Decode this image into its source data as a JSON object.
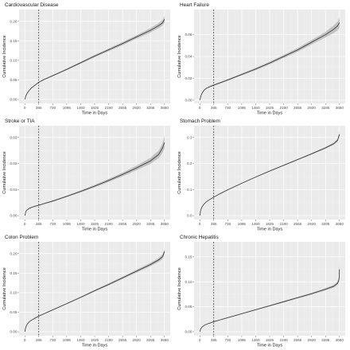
{
  "chart_data": [
    {
      "type": "line",
      "title": "Cardiovascular Disease",
      "xlabel": "Time in Days",
      "ylabel": "Cumulative Incidence",
      "x_ticks": [
        0,
        365,
        730,
        1095,
        1460,
        1825,
        2190,
        2555,
        2920,
        3285,
        3650
      ],
      "y_ticks": [
        0.0,
        0.05,
        0.1,
        0.15,
        0.2
      ],
      "y_tick_labels": [
        "0.00",
        "0.05",
        "0.10",
        "0.15",
        "0.20"
      ],
      "xlim": [
        -150,
        3800
      ],
      "ylim": [
        -0.01,
        0.23
      ],
      "vline_x": 365,
      "grid": true,
      "series": [
        {
          "x": [
            0,
            30,
            60,
            120,
            180,
            270,
            365,
            500,
            730,
            1095,
            1460,
            1825,
            2190,
            2555,
            2920,
            3285,
            3500,
            3600,
            3650
          ],
          "y": [
            0.0,
            0.01,
            0.016,
            0.024,
            0.03,
            0.037,
            0.044,
            0.051,
            0.061,
            0.077,
            0.094,
            0.111,
            0.127,
            0.143,
            0.16,
            0.177,
            0.189,
            0.196,
            0.205
          ],
          "lower": [
            0.0,
            0.0095,
            0.0153,
            0.0231,
            0.0291,
            0.036,
            0.0429,
            0.0497,
            0.0595,
            0.075,
            0.0915,
            0.108,
            0.1235,
            0.139,
            0.1555,
            0.1715,
            0.1825,
            0.189,
            0.196
          ],
          "upper": [
            0.0,
            0.0105,
            0.0167,
            0.0249,
            0.0309,
            0.038,
            0.0451,
            0.0523,
            0.0625,
            0.079,
            0.0965,
            0.114,
            0.1305,
            0.147,
            0.1645,
            0.1825,
            0.1955,
            0.203,
            0.214
          ]
        }
      ]
    },
    {
      "type": "line",
      "title": "Heart Failure",
      "xlabel": "Time in Days",
      "ylabel": "Cumulative Incidence",
      "x_ticks": [
        0,
        365,
        730,
        1095,
        1460,
        1825,
        2190,
        2555,
        2920,
        3285,
        3650
      ],
      "y_ticks": [
        0.0,
        0.02,
        0.04,
        0.06
      ],
      "y_tick_labels": [
        "0.00",
        "0.02",
        "0.04",
        "0.06"
      ],
      "xlim": [
        -150,
        3800
      ],
      "ylim": [
        -0.003,
        0.083
      ],
      "vline_x": 365,
      "grid": true,
      "series": [
        {
          "x": [
            0,
            30,
            60,
            120,
            180,
            270,
            365,
            500,
            730,
            1095,
            1460,
            1825,
            2190,
            2555,
            2920,
            3285,
            3500,
            3600,
            3650
          ],
          "y": [
            0.0,
            0.004,
            0.0065,
            0.0095,
            0.011,
            0.0125,
            0.0138,
            0.0155,
            0.0185,
            0.0235,
            0.0285,
            0.034,
            0.04,
            0.046,
            0.053,
            0.06,
            0.065,
            0.068,
            0.071
          ],
          "lower": [
            0.0,
            0.0037,
            0.0061,
            0.009,
            0.0105,
            0.0119,
            0.0132,
            0.0148,
            0.0177,
            0.0226,
            0.0274,
            0.0327,
            0.0385,
            0.0443,
            0.051,
            0.0575,
            0.0615,
            0.064,
            0.0665
          ],
          "upper": [
            0.0,
            0.0043,
            0.0069,
            0.01,
            0.0115,
            0.0131,
            0.0144,
            0.0162,
            0.0193,
            0.0244,
            0.0296,
            0.0353,
            0.0415,
            0.0477,
            0.055,
            0.0625,
            0.0685,
            0.072,
            0.0755
          ]
        }
      ]
    },
    {
      "type": "line",
      "title": "Stroke or TIA",
      "xlabel": "Time in Days",
      "ylabel": "Cumulative Incidence",
      "x_ticks": [
        0,
        365,
        730,
        1095,
        1460,
        1825,
        2190,
        2555,
        2920,
        3285,
        3650
      ],
      "y_ticks": [
        0.0,
        0.01,
        0.02,
        0.03
      ],
      "y_tick_labels": [
        "0.00",
        "0.01",
        "0.02",
        "0.03"
      ],
      "xlim": [
        -150,
        3800
      ],
      "ylim": [
        -0.0015,
        0.0345
      ],
      "vline_x": 365,
      "grid": true,
      "series": [
        {
          "x": [
            0,
            30,
            60,
            120,
            180,
            270,
            365,
            500,
            730,
            1095,
            1460,
            1825,
            2190,
            2555,
            2920,
            3285,
            3500,
            3600,
            3650
          ],
          "y": [
            0.0,
            0.0017,
            0.0022,
            0.0028,
            0.0032,
            0.0036,
            0.004,
            0.0046,
            0.0056,
            0.0074,
            0.0093,
            0.0113,
            0.0135,
            0.0158,
            0.0183,
            0.021,
            0.0235,
            0.026,
            0.028
          ],
          "lower": [
            0.0,
            0.0015,
            0.002,
            0.0026,
            0.003,
            0.0034,
            0.0038,
            0.0044,
            0.0053,
            0.0071,
            0.0089,
            0.0108,
            0.0129,
            0.0151,
            0.0174,
            0.0199,
            0.0221,
            0.0242,
            0.0258
          ],
          "upper": [
            0.0,
            0.0019,
            0.0024,
            0.003,
            0.0034,
            0.0038,
            0.0042,
            0.0048,
            0.0059,
            0.0077,
            0.0097,
            0.0118,
            0.0141,
            0.0165,
            0.0192,
            0.0222,
            0.025,
            0.0278,
            0.0305
          ]
        }
      ]
    },
    {
      "type": "line",
      "title": "Stomach Problem",
      "xlabel": "Time in Days",
      "ylabel": "Cumulative Incidence",
      "x_ticks": [
        0,
        365,
        730,
        1095,
        1460,
        1825,
        2190,
        2555,
        2920,
        3285,
        3650
      ],
      "y_ticks": [
        0.0,
        0.1,
        0.2,
        0.3
      ],
      "y_tick_labels": [
        "0.0",
        "0.1",
        "0.2",
        "0.3"
      ],
      "xlim": [
        -150,
        3800
      ],
      "ylim": [
        -0.015,
        0.345
      ],
      "vline_x": 365,
      "grid": true,
      "series": [
        {
          "x": [
            0,
            15,
            30,
            60,
            120,
            180,
            270,
            365,
            500,
            730,
            1095,
            1460,
            1825,
            2190,
            2555,
            2920,
            3285,
            3500,
            3600,
            3650
          ],
          "y": [
            0.0,
            0.015,
            0.024,
            0.034,
            0.046,
            0.054,
            0.063,
            0.071,
            0.082,
            0.099,
            0.124,
            0.148,
            0.171,
            0.193,
            0.215,
            0.237,
            0.26,
            0.276,
            0.289,
            0.312
          ],
          "lower": [
            0.0,
            0.0145,
            0.0233,
            0.0332,
            0.0451,
            0.0531,
            0.062,
            0.0699,
            0.0808,
            0.0976,
            0.1224,
            0.1462,
            0.169,
            0.1908,
            0.2126,
            0.2342,
            0.2566,
            0.2718,
            0.2838,
            0.3045
          ],
          "upper": [
            0.0,
            0.0155,
            0.0247,
            0.0348,
            0.0469,
            0.0549,
            0.064,
            0.0721,
            0.0832,
            0.1004,
            0.1256,
            0.1498,
            0.173,
            0.1952,
            0.2174,
            0.2398,
            0.2634,
            0.2802,
            0.2942,
            0.3195
          ]
        }
      ]
    },
    {
      "type": "line",
      "title": "Colon Problem",
      "xlabel": "Time in Days",
      "ylabel": "Cumulative Incidence",
      "x_ticks": [
        0,
        365,
        730,
        1095,
        1460,
        1825,
        2190,
        2555,
        2920,
        3285,
        3650
      ],
      "y_ticks": [
        0.0,
        0.05,
        0.1,
        0.15,
        0.2
      ],
      "y_tick_labels": [
        "0.00",
        "0.05",
        "0.10",
        "0.15",
        "0.20"
      ],
      "xlim": [
        -150,
        3800
      ],
      "ylim": [
        -0.01,
        0.23
      ],
      "vline_x": 365,
      "grid": true,
      "series": [
        {
          "x": [
            0,
            15,
            30,
            60,
            120,
            180,
            270,
            365,
            500,
            730,
            1095,
            1460,
            1825,
            2190,
            2555,
            2920,
            3285,
            3500,
            3600,
            3650
          ],
          "y": [
            0.0,
            0.008,
            0.013,
            0.019,
            0.026,
            0.03,
            0.035,
            0.04,
            0.046,
            0.056,
            0.072,
            0.088,
            0.105,
            0.121,
            0.138,
            0.155,
            0.172,
            0.184,
            0.192,
            0.205
          ],
          "lower": [
            0.0,
            0.0075,
            0.0124,
            0.0184,
            0.0253,
            0.0293,
            0.0343,
            0.0392,
            0.0451,
            0.0549,
            0.0705,
            0.0862,
            0.1028,
            0.1184,
            0.135,
            0.1515,
            0.1677,
            0.179,
            0.1862,
            0.1985
          ],
          "upper": [
            0.0,
            0.0085,
            0.0136,
            0.0196,
            0.0267,
            0.0307,
            0.0357,
            0.0408,
            0.0469,
            0.0571,
            0.0735,
            0.0898,
            0.1072,
            0.1236,
            0.141,
            0.1585,
            0.1763,
            0.189,
            0.1978,
            0.2115
          ]
        }
      ]
    },
    {
      "type": "line",
      "title": "Chronic Hepatitis",
      "xlabel": "Time in Days",
      "ylabel": "Cumulative Incidence",
      "x_ticks": [
        0,
        365,
        730,
        1095,
        1460,
        1825,
        2190,
        2555,
        2920,
        3285,
        3650
      ],
      "y_ticks": [
        0.0,
        0.05,
        0.1,
        0.15
      ],
      "y_tick_labels": [
        "0.00",
        "0.05",
        "0.10",
        "0.15"
      ],
      "xlim": [
        -150,
        3800
      ],
      "ylim": [
        -0.008,
        0.18
      ],
      "vline_x": 365,
      "grid": true,
      "series": [
        {
          "x": [
            0,
            15,
            30,
            60,
            120,
            180,
            270,
            365,
            500,
            730,
            1095,
            1460,
            1825,
            2190,
            2555,
            2920,
            3285,
            3500,
            3600,
            3640,
            3650
          ],
          "y": [
            0.0,
            0.004,
            0.0065,
            0.0095,
            0.013,
            0.015,
            0.0175,
            0.02,
            0.023,
            0.028,
            0.036,
            0.044,
            0.052,
            0.06,
            0.068,
            0.076,
            0.085,
            0.091,
            0.097,
            0.105,
            0.125
          ],
          "lower": [
            0.0,
            0.0035,
            0.006,
            0.009,
            0.0124,
            0.0144,
            0.0169,
            0.0193,
            0.0223,
            0.0272,
            0.0351,
            0.043,
            0.0508,
            0.0586,
            0.0664,
            0.0742,
            0.0828,
            0.0883,
            0.0935,
            0.1,
            0.115
          ],
          "upper": [
            0.0,
            0.0045,
            0.007,
            0.01,
            0.0136,
            0.0156,
            0.0181,
            0.0207,
            0.0237,
            0.0288,
            0.0369,
            0.045,
            0.0532,
            0.0614,
            0.0696,
            0.0778,
            0.0872,
            0.0937,
            0.1005,
            0.112,
            0.152
          ]
        }
      ]
    }
  ]
}
